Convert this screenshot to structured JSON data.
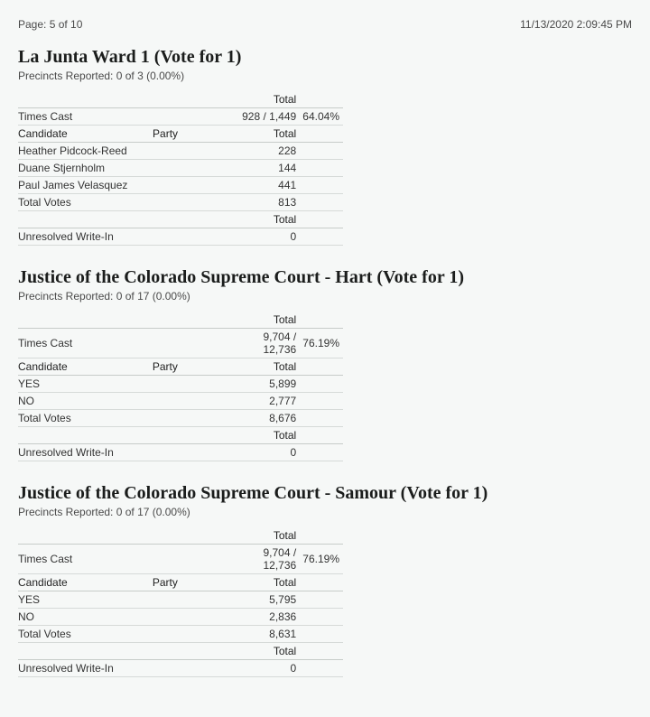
{
  "header": {
    "page_label": "Page: 5 of 10",
    "timestamp": "11/13/2020 2:09:45 PM"
  },
  "contests": [
    {
      "title": "La Junta Ward 1 (Vote for  1)",
      "precincts": "Precincts Reported: 0 of 3 (0.00%)",
      "total_header": "Total",
      "times_cast_label": "Times Cast",
      "times_cast_value": "928 / 1,449",
      "times_cast_pct": "64.04%",
      "candidate_header": "Candidate",
      "party_header": "Party",
      "candidates": [
        {
          "name": "Heather Pidcock-Reed",
          "party": "",
          "total": "228"
        },
        {
          "name": "Duane Stjernholm",
          "party": "",
          "total": "144"
        },
        {
          "name": "Paul James Velasquez",
          "party": "",
          "total": "441"
        }
      ],
      "total_votes_label": "Total Votes",
      "total_votes_value": "813",
      "unresolved_label": "Unresolved Write-In",
      "unresolved_value": "0"
    },
    {
      "title": "Justice of the Colorado Supreme Court - Hart (Vote for  1)",
      "precincts": "Precincts Reported: 0 of 17 (0.00%)",
      "total_header": "Total",
      "times_cast_label": "Times Cast",
      "times_cast_value": "9,704 / 12,736",
      "times_cast_pct": "76.19%",
      "candidate_header": "Candidate",
      "party_header": "Party",
      "candidates": [
        {
          "name": "YES",
          "party": "",
          "total": "5,899"
        },
        {
          "name": "NO",
          "party": "",
          "total": "2,777"
        }
      ],
      "total_votes_label": "Total Votes",
      "total_votes_value": "8,676",
      "unresolved_label": "Unresolved Write-In",
      "unresolved_value": "0"
    },
    {
      "title": "Justice of the Colorado Supreme Court - Samour (Vote for  1)",
      "precincts": "Precincts Reported: 0 of 17 (0.00%)",
      "total_header": "Total",
      "times_cast_label": "Times Cast",
      "times_cast_value": "9,704 / 12,736",
      "times_cast_pct": "76.19%",
      "candidate_header": "Candidate",
      "party_header": "Party",
      "candidates": [
        {
          "name": "YES",
          "party": "",
          "total": "5,795"
        },
        {
          "name": "NO",
          "party": "",
          "total": "2,836"
        }
      ],
      "total_votes_label": "Total Votes",
      "total_votes_value": "8,631",
      "unresolved_label": "Unresolved Write-In",
      "unresolved_value": "0"
    }
  ]
}
